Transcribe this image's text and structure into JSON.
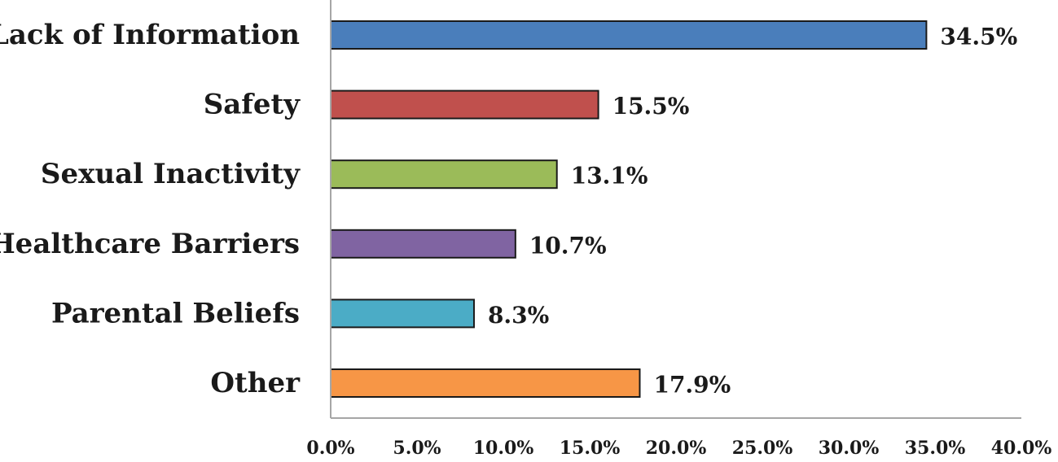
{
  "chart_data": {
    "type": "bar",
    "orientation": "horizontal",
    "categories": [
      "Lack of Information",
      "Safety",
      "Sexual Inactivity",
      "Healthcare Barriers",
      "Parental Beliefs",
      "Other"
    ],
    "values": [
      34.5,
      15.5,
      13.1,
      10.7,
      8.3,
      17.9
    ],
    "value_labels": [
      "34.5%",
      "15.5%",
      "13.1%",
      "10.7%",
      "8.3%",
      "17.9%"
    ],
    "colors": [
      "#4a7ebb",
      "#c0504d",
      "#9bbb59",
      "#8064a2",
      "#4bacc6",
      "#f79646"
    ],
    "xlim": [
      0,
      40
    ],
    "x_ticks": [
      "0.0%",
      "5.0%",
      "10.0%",
      "15.0%",
      "20.0%",
      "25.0%",
      "30.0%",
      "35.0%",
      "40.0%"
    ],
    "title": "",
    "xlabel": "",
    "ylabel": "",
    "grid": false,
    "legend": "none"
  }
}
